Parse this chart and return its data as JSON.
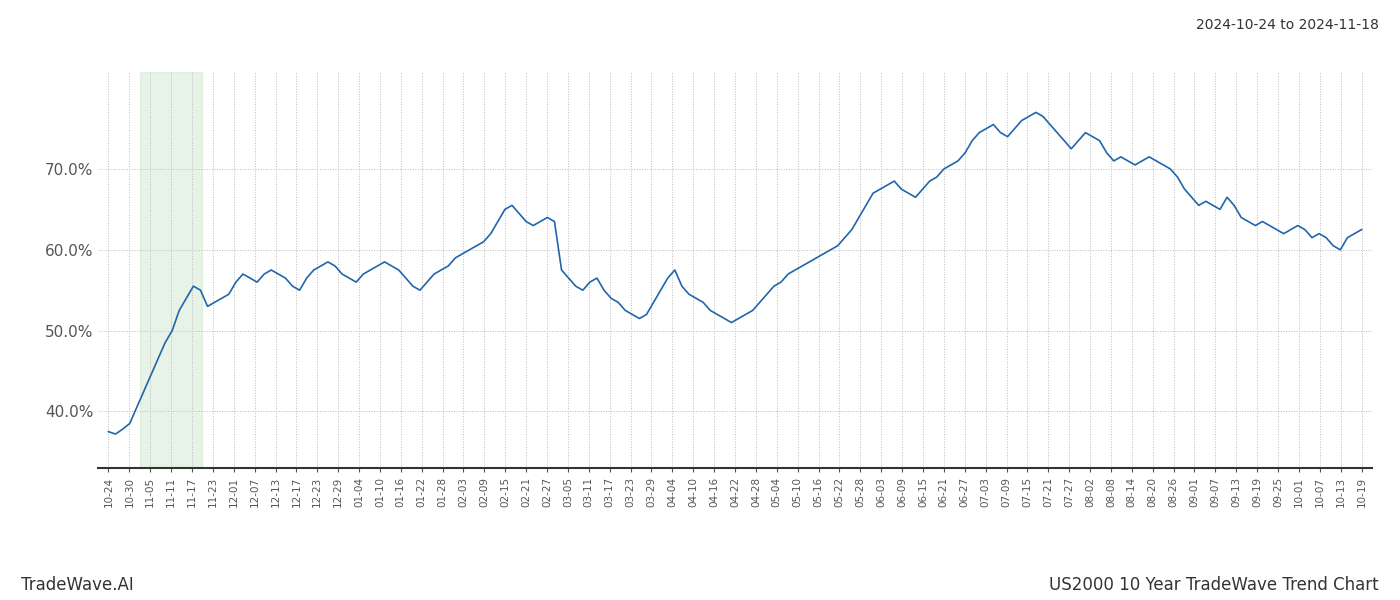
{
  "title_right": "2024-10-24 to 2024-11-18",
  "footer_left": "TradeWave.AI",
  "footer_right": "US2000 10 Year TradeWave Trend Chart",
  "line_color": "#2166ac",
  "line_width": 1.2,
  "background_color": "#ffffff",
  "grid_color": "#bbbbbb",
  "grid_style": ":",
  "highlight_color": "#c8e6c9",
  "highlight_alpha": 0.45,
  "ylim": [
    33,
    82
  ],
  "yticks": [
    40.0,
    50.0,
    60.0,
    70.0
  ],
  "ytick_labels": [
    "40.0%",
    "50.0%",
    "60.0%",
    "70.0%"
  ],
  "x_labels": [
    "10-24",
    "10-30",
    "11-05",
    "11-11",
    "11-17",
    "11-23",
    "12-01",
    "12-07",
    "12-13",
    "12-17",
    "12-23",
    "12-29",
    "01-04",
    "01-10",
    "01-16",
    "01-22",
    "01-28",
    "02-03",
    "02-09",
    "02-15",
    "02-21",
    "02-27",
    "03-05",
    "03-11",
    "03-17",
    "03-23",
    "03-29",
    "04-04",
    "04-10",
    "04-16",
    "04-22",
    "04-28",
    "05-04",
    "05-10",
    "05-16",
    "05-22",
    "05-28",
    "06-03",
    "06-09",
    "06-15",
    "06-21",
    "06-27",
    "07-03",
    "07-09",
    "07-15",
    "07-21",
    "07-27",
    "08-02",
    "08-08",
    "08-14",
    "08-20",
    "08-26",
    "09-01",
    "09-07",
    "09-13",
    "09-19",
    "09-25",
    "10-01",
    "10-07",
    "10-13",
    "10-19"
  ],
  "highlight_x_start_label": "11-05",
  "highlight_x_end_label": "11-17",
  "y_values": [
    37.5,
    37.2,
    37.8,
    38.5,
    40.5,
    42.5,
    44.5,
    46.5,
    48.5,
    50.0,
    52.5,
    54.0,
    55.5,
    55.0,
    53.0,
    53.5,
    54.0,
    54.5,
    56.0,
    57.0,
    56.5,
    56.0,
    57.0,
    57.5,
    57.0,
    56.5,
    55.5,
    55.0,
    56.5,
    57.5,
    58.0,
    58.5,
    58.0,
    57.0,
    56.5,
    56.0,
    57.0,
    57.5,
    58.0,
    58.5,
    58.0,
    57.5,
    56.5,
    55.5,
    55.0,
    56.0,
    57.0,
    57.5,
    58.0,
    59.0,
    59.5,
    60.0,
    60.5,
    61.0,
    62.0,
    63.5,
    65.0,
    65.5,
    64.5,
    63.5,
    63.0,
    63.5,
    64.0,
    63.5,
    57.5,
    56.5,
    55.5,
    55.0,
    56.0,
    56.5,
    55.0,
    54.0,
    53.5,
    52.5,
    52.0,
    51.5,
    52.0,
    53.5,
    55.0,
    56.5,
    57.5,
    55.5,
    54.5,
    54.0,
    53.5,
    52.5,
    52.0,
    51.5,
    51.0,
    51.5,
    52.0,
    52.5,
    53.5,
    54.5,
    55.5,
    56.0,
    57.0,
    57.5,
    58.0,
    58.5,
    59.0,
    59.5,
    60.0,
    60.5,
    61.5,
    62.5,
    64.0,
    65.5,
    67.0,
    67.5,
    68.0,
    68.5,
    67.5,
    67.0,
    66.5,
    67.5,
    68.5,
    69.0,
    70.0,
    70.5,
    71.0,
    72.0,
    73.5,
    74.5,
    75.0,
    75.5,
    74.5,
    74.0,
    75.0,
    76.0,
    76.5,
    77.0,
    76.5,
    75.5,
    74.5,
    73.5,
    72.5,
    73.5,
    74.5,
    74.0,
    73.5,
    72.0,
    71.0,
    71.5,
    71.0,
    70.5,
    71.0,
    71.5,
    71.0,
    70.5,
    70.0,
    69.0,
    67.5,
    66.5,
    65.5,
    66.0,
    65.5,
    65.0,
    66.5,
    65.5,
    64.0,
    63.5,
    63.0,
    63.5,
    63.0,
    62.5,
    62.0,
    62.5,
    63.0,
    62.5,
    61.5,
    62.0,
    61.5,
    60.5,
    60.0,
    61.5,
    62.0,
    62.5
  ]
}
